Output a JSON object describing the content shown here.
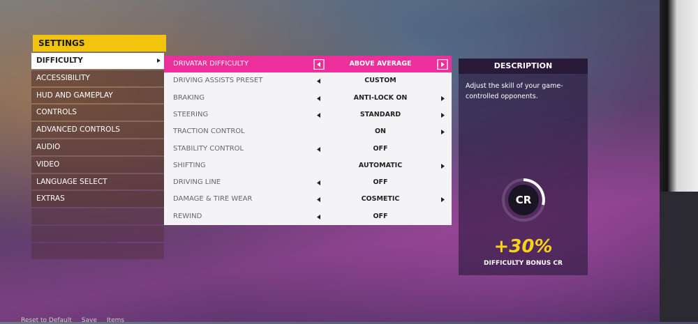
{
  "header": {
    "title": "SETTINGS"
  },
  "menu": {
    "items": [
      "DIFFICULTY",
      "ACCESSIBILITY",
      "HUD AND GAMEPLAY",
      "CONTROLS",
      "ADVANCED CONTROLS",
      "AUDIO",
      "VIDEO",
      "LANGUAGE SELECT",
      "EXTRAS"
    ],
    "selected": 0
  },
  "settings": {
    "selected": 0,
    "rows": [
      {
        "label": "DRIVATAR DIFFICULTY",
        "value": "ABOVE AVERAGE",
        "left": true,
        "right": true
      },
      {
        "label": "DRIVING ASSISTS PRESET",
        "value": "CUSTOM",
        "left": true,
        "right": false
      },
      {
        "label": "BRAKING",
        "value": "ANTI-LOCK ON",
        "left": true,
        "right": true
      },
      {
        "label": "STEERING",
        "value": "STANDARD",
        "left": true,
        "right": true
      },
      {
        "label": "TRACTION CONTROL",
        "value": "ON",
        "left": false,
        "right": true
      },
      {
        "label": "STABILITY CONTROL",
        "value": "OFF",
        "left": true,
        "right": false
      },
      {
        "label": "SHIFTING",
        "value": "AUTOMATIC",
        "left": false,
        "right": true
      },
      {
        "label": "DRIVING LINE",
        "value": "OFF",
        "left": true,
        "right": false
      },
      {
        "label": "DAMAGE & TIRE WEAR",
        "value": "COSMETIC",
        "left": true,
        "right": true
      },
      {
        "label": "REWIND",
        "value": "OFF",
        "left": true,
        "right": false
      }
    ]
  },
  "description": {
    "title": "DESCRIPTION",
    "text": "Adjust the skill of your game-controlled opponents.",
    "badge": "CR",
    "bonus": "+30%",
    "caption": "DIFFICULTY BONUS CR"
  },
  "footer": {
    "hints": [
      "Reset to Default",
      "Save",
      "Items"
    ]
  }
}
